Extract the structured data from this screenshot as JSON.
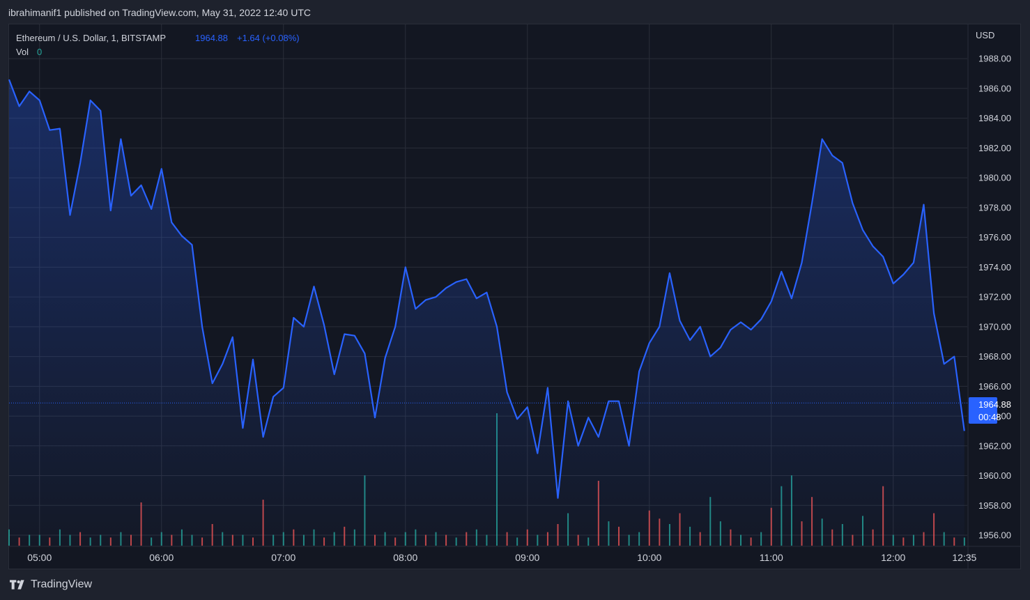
{
  "header": {
    "publish_line": "ibrahimanif1 published on TradingView.com, May 31, 2022 12:40 UTC"
  },
  "legend": {
    "symbol": "Ethereum / U.S. Dollar, 1, BITSTAMP",
    "price": "1964.88",
    "change": "+1.64 (+0.08%)",
    "vol_label": "Vol",
    "vol_value": "0"
  },
  "price_axis": {
    "currency": "USD",
    "last_price": "1964.88",
    "countdown": "00:48"
  },
  "footer": {
    "brand": "TradingView"
  },
  "colors": {
    "background": "#131722",
    "line": "#2962ff",
    "grid": "#2a2e39",
    "text": "#d1d4dc",
    "volume_up": "#26a69a",
    "volume_down": "#ef5350"
  },
  "chart_data": {
    "type": "area",
    "title": "Ethereum / U.S. Dollar, 1, BITSTAMP",
    "xlabel": "",
    "ylabel": "USD",
    "ylim": [
      1955.3,
      1990.3
    ],
    "grid": true,
    "x_ticks": [
      "05:00",
      "06:00",
      "07:00",
      "08:00",
      "09:00",
      "10:00",
      "11:00",
      "12:00",
      "12:35"
    ],
    "y_ticks": [
      "1956.00",
      "1958.00",
      "1960.00",
      "1962.00",
      "1964.00",
      "1966.00",
      "1968.00",
      "1970.00",
      "1972.00",
      "1974.00",
      "1976.00",
      "1978.00",
      "1980.00",
      "1982.00",
      "1984.00",
      "1986.00",
      "1988.00"
    ],
    "x_times": [
      "04:45",
      "04:50",
      "04:55",
      "05:00",
      "05:05",
      "05:10",
      "05:15",
      "05:20",
      "05:25",
      "05:30",
      "05:35",
      "05:40",
      "05:45",
      "05:50",
      "05:55",
      "06:00",
      "06:05",
      "06:10",
      "06:15",
      "06:20",
      "06:25",
      "06:30",
      "06:35",
      "06:40",
      "06:45",
      "06:50",
      "06:55",
      "07:00",
      "07:05",
      "07:10",
      "07:15",
      "07:20",
      "07:25",
      "07:30",
      "07:35",
      "07:40",
      "07:45",
      "07:50",
      "07:55",
      "08:00",
      "08:05",
      "08:10",
      "08:15",
      "08:20",
      "08:25",
      "08:30",
      "08:35",
      "08:40",
      "08:45",
      "08:50",
      "08:55",
      "09:00",
      "09:05",
      "09:10",
      "09:15",
      "09:20",
      "09:25",
      "09:30",
      "09:35",
      "09:40",
      "09:45",
      "09:50",
      "09:55",
      "10:00",
      "10:05",
      "10:10",
      "10:15",
      "10:20",
      "10:25",
      "10:30",
      "10:35",
      "10:40",
      "10:45",
      "10:50",
      "10:55",
      "11:00",
      "11:05",
      "11:10",
      "11:15",
      "11:20",
      "11:25",
      "11:30",
      "11:35",
      "11:40",
      "11:45",
      "11:50",
      "11:55",
      "12:00",
      "12:05",
      "12:10",
      "12:15",
      "12:20",
      "12:25",
      "12:30",
      "12:35"
    ],
    "series": [
      {
        "values": [
          1986.6,
          1984.8,
          1985.8,
          1985.2,
          1983.2,
          1983.3,
          1977.5,
          1981.0,
          1985.2,
          1984.5,
          1977.8,
          1982.6,
          1978.8,
          1979.5,
          1977.9,
          1980.6,
          1977.0,
          1976.1,
          1975.5,
          1970.0,
          1966.2,
          1967.5,
          1969.3,
          1963.2,
          1967.8,
          1962.6,
          1965.3,
          1965.9,
          1970.6,
          1970.0,
          1972.7,
          1970.1,
          1966.8,
          1969.5,
          1969.4,
          1968.2,
          1963.9,
          1967.9,
          1970.0,
          1974.0,
          1971.2,
          1971.8,
          1972.0,
          1972.6,
          1973.0,
          1973.2,
          1971.9,
          1972.3,
          1970.0,
          1965.6,
          1963.8,
          1964.6,
          1961.5,
          1965.9,
          1958.5,
          1965.0,
          1962.0,
          1963.9,
          1962.6,
          1965.0,
          1965.0,
          1962.0,
          1967.0,
          1968.9,
          1970.0,
          1973.6,
          1970.4,
          1969.1,
          1970.0,
          1968.0,
          1968.6,
          1969.8,
          1970.3,
          1969.8,
          1970.5,
          1971.7,
          1973.7,
          1971.9,
          1974.3,
          1978.3,
          1982.6,
          1981.5,
          1981.0,
          1978.3,
          1976.5,
          1975.4,
          1974.7,
          1972.9,
          1973.5,
          1974.3,
          1978.2,
          1970.9,
          1967.5,
          1968.0,
          1963.0
        ]
      }
    ],
    "volume_values": [
      6,
      3,
      4,
      4,
      3,
      6,
      4,
      5,
      3,
      4,
      3,
      5,
      4,
      16,
      3,
      5,
      4,
      6,
      4,
      3,
      8,
      5,
      4,
      4,
      3,
      17,
      4,
      5,
      6,
      4,
      6,
      3,
      5,
      7,
      6,
      26,
      4,
      5,
      3,
      5,
      6,
      4,
      5,
      4,
      3,
      5,
      6,
      4,
      49,
      5,
      3,
      6,
      4,
      5,
      8,
      12,
      4,
      3,
      24,
      9,
      7,
      4,
      5,
      13,
      10,
      8,
      12,
      7,
      5,
      18,
      9,
      6,
      4,
      3,
      5,
      14,
      22,
      26,
      9,
      18,
      10,
      6,
      8,
      4,
      11,
      6,
      22,
      4,
      3,
      4,
      5,
      12,
      5,
      3,
      3
    ],
    "volume_up": [
      true,
      false,
      true,
      true,
      false,
      true,
      true,
      false,
      true,
      true,
      false,
      true,
      false,
      false,
      true,
      true,
      false,
      true,
      true,
      false,
      false,
      true,
      false,
      true,
      false,
      false,
      true,
      true,
      false,
      true,
      true,
      false,
      true,
      false,
      true,
      true,
      false,
      true,
      false,
      true,
      true,
      false,
      true,
      false,
      true,
      false,
      true,
      true,
      true,
      false,
      true,
      false,
      true,
      false,
      false,
      true,
      false,
      true,
      false,
      true,
      false,
      true,
      true,
      false,
      false,
      true,
      false,
      true,
      false,
      true,
      true,
      false,
      true,
      false,
      true,
      false,
      true,
      true,
      false,
      false,
      true,
      false,
      true,
      false,
      true,
      false,
      false,
      true,
      false,
      true,
      false,
      false,
      true,
      false,
      true
    ]
  }
}
